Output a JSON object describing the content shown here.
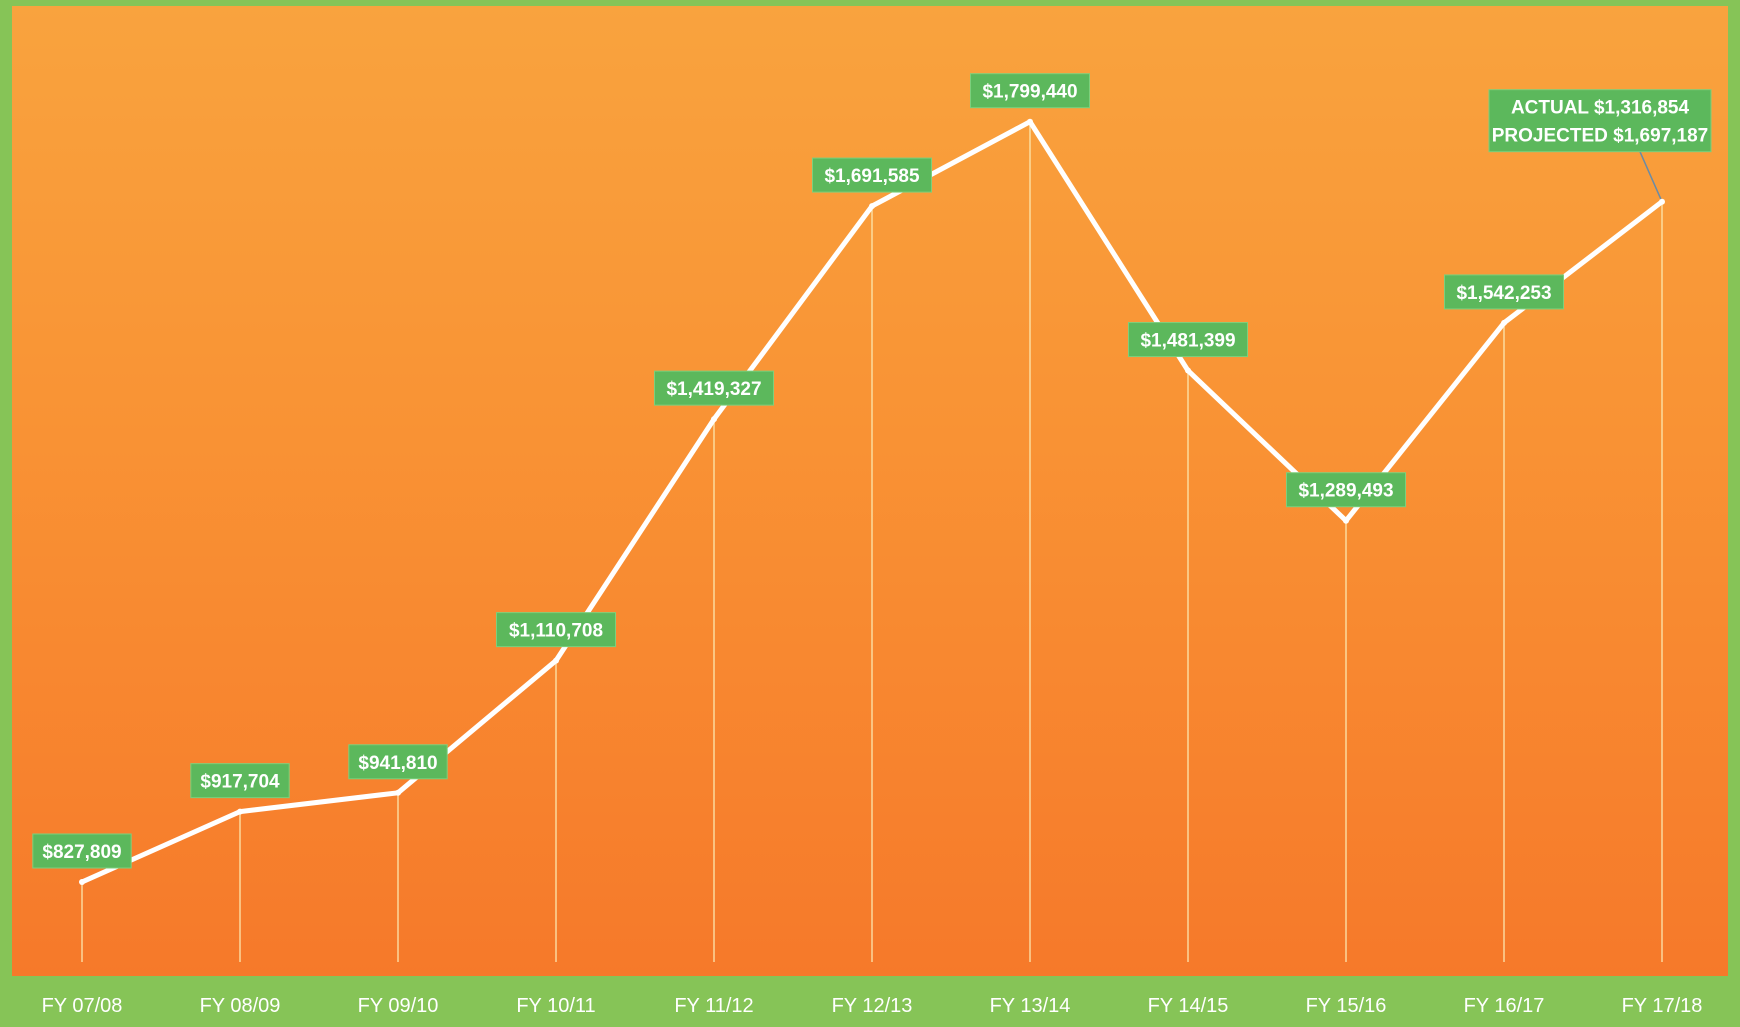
{
  "chart_data": {
    "type": "line",
    "categories": [
      "FY 07/08",
      "FY 08/09",
      "FY 09/10",
      "FY 10/11",
      "FY 11/12",
      "FY 12/13",
      "FY 13/14",
      "FY 14/15",
      "FY 15/16",
      "FY 16/17",
      "FY 17/18"
    ],
    "values": [
      827809,
      917704,
      941810,
      1110708,
      1419327,
      1691585,
      1799440,
      1481399,
      1289493,
      1542253,
      1697187
    ],
    "data_labels": [
      "$827,809",
      "$917,704",
      "$941,810",
      "$1,110,708",
      "$1,419,327",
      "$1,691,585",
      "$1,799,440",
      "$1,481,399",
      "$1,289,493",
      "$1,542,253",
      [
        "ACTUAL $1,316,854",
        "PROJECTED $1,697,187"
      ]
    ],
    "annotation": {
      "category": "FY 17/18",
      "actual_value": 1316854,
      "projected_value": 1697187
    },
    "title": "",
    "xlabel": "",
    "ylabel": "",
    "ylim": [
      700000,
      1900000
    ],
    "grid": false,
    "legend": "none",
    "drop_lines": true,
    "colors": {
      "background_top": "#f9a33e",
      "background_bottom": "#f6792a",
      "frame": "#86c457",
      "line": "#ffffff",
      "label_box": "#5cb85c",
      "label_text": "#ffffff",
      "tick_text": "#ffffff"
    }
  }
}
